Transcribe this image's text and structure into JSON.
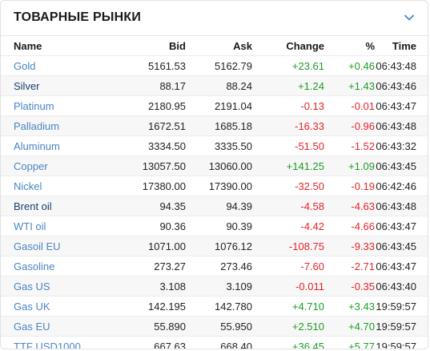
{
  "widget": {
    "title": "ТОВАРНЫЕ РЫНКИ",
    "toggle_icon": "chevron-down-icon"
  },
  "colors": {
    "link": "#4a85c5",
    "link_dark": "#173e6e",
    "positive": "#1e9c26",
    "negative": "#e4242a"
  },
  "columns": {
    "name": "Name",
    "bid": "Bid",
    "ask": "Ask",
    "change": "Change",
    "percent": "%",
    "time": "Time"
  },
  "rows": [
    {
      "name": "Gold",
      "bid": "5161.53",
      "ask": "5162.79",
      "change": "+23.61",
      "percent": "+0.46",
      "time": "06:43:48",
      "trend": "pos",
      "link_style": "light"
    },
    {
      "name": "Silver",
      "bid": "88.17",
      "ask": "88.24",
      "change": "+1.24",
      "percent": "+1.43",
      "time": "06:43:46",
      "trend": "pos",
      "link_style": "dark"
    },
    {
      "name": "Platinum",
      "bid": "2180.95",
      "ask": "2191.04",
      "change": "-0.13",
      "percent": "-0.01",
      "time": "06:43:47",
      "trend": "neg",
      "link_style": "light"
    },
    {
      "name": "Palladium",
      "bid": "1672.51",
      "ask": "1685.18",
      "change": "-16.33",
      "percent": "-0.96",
      "time": "06:43:48",
      "trend": "neg",
      "link_style": "light"
    },
    {
      "name": "Aluminum",
      "bid": "3334.50",
      "ask": "3335.50",
      "change": "-51.50",
      "percent": "-1.52",
      "time": "06:43:32",
      "trend": "neg",
      "link_style": "light"
    },
    {
      "name": "Copper",
      "bid": "13057.50",
      "ask": "13060.00",
      "change": "+141.25",
      "percent": "+1.09",
      "time": "06:43:45",
      "trend": "pos",
      "link_style": "light"
    },
    {
      "name": "Nickel",
      "bid": "17380.00",
      "ask": "17390.00",
      "change": "-32.50",
      "percent": "-0.19",
      "time": "06:42:46",
      "trend": "neg",
      "link_style": "light"
    },
    {
      "name": "Brent oil",
      "bid": "94.35",
      "ask": "94.39",
      "change": "-4.58",
      "percent": "-4.63",
      "time": "06:43:48",
      "trend": "neg",
      "link_style": "dark"
    },
    {
      "name": "WTI oil",
      "bid": "90.36",
      "ask": "90.39",
      "change": "-4.42",
      "percent": "-4.66",
      "time": "06:43:47",
      "trend": "neg",
      "link_style": "light"
    },
    {
      "name": "Gasoil EU",
      "bid": "1071.00",
      "ask": "1076.12",
      "change": "-108.75",
      "percent": "-9.33",
      "time": "06:43:45",
      "trend": "neg",
      "link_style": "light"
    },
    {
      "name": "Gasoline",
      "bid": "273.27",
      "ask": "273.46",
      "change": "-7.60",
      "percent": "-2.71",
      "time": "06:43:47",
      "trend": "neg",
      "link_style": "light"
    },
    {
      "name": "Gas US",
      "bid": "3.108",
      "ask": "3.109",
      "change": "-0.011",
      "percent": "-0.35",
      "time": "06:43:40",
      "trend": "neg",
      "link_style": "light"
    },
    {
      "name": "Gas UK",
      "bid": "142.195",
      "ask": "142.780",
      "change": "+4.710",
      "percent": "+3.43",
      "time": "19:59:57",
      "trend": "pos",
      "link_style": "light"
    },
    {
      "name": "Gas EU",
      "bid": "55.890",
      "ask": "55.950",
      "change": "+2.510",
      "percent": "+4.70",
      "time": "19:59:57",
      "trend": "pos",
      "link_style": "light"
    },
    {
      "name": "TTF USD1000",
      "bid": "667.63",
      "ask": "668.40",
      "change": "+36.45",
      "percent": "+5.77",
      "time": "19:59:57",
      "trend": "pos",
      "link_style": "light"
    }
  ]
}
